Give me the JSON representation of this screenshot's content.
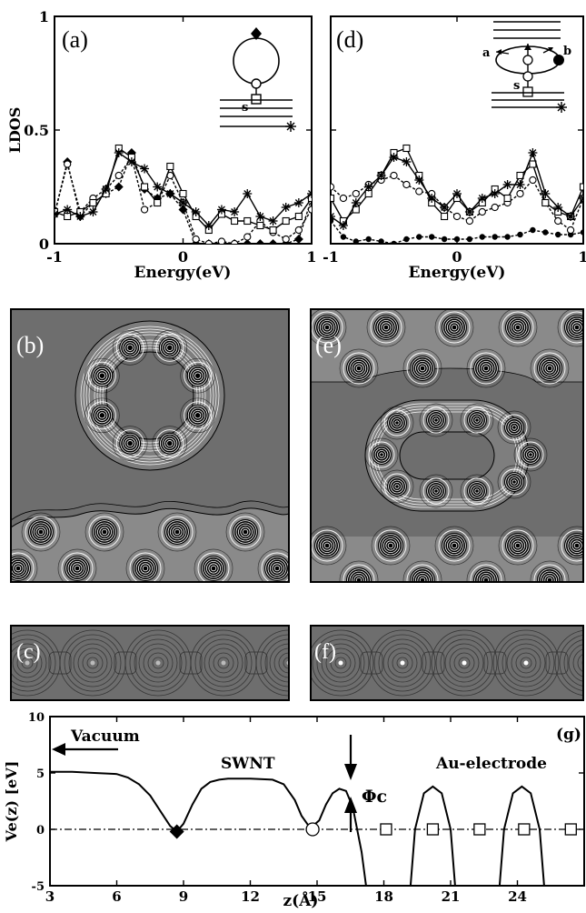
{
  "chart_data": [
    {
      "type": "line",
      "panel_label": "(a)",
      "ylabel": "LDOS",
      "xlabel": "Energy(eV)",
      "xlim": [
        -1,
        1
      ],
      "ylim": [
        0,
        1
      ],
      "x_ticks": [
        "-1",
        "0",
        "1"
      ],
      "y_ticks": [
        "0",
        "0.5",
        "1"
      ],
      "inset_label": "s",
      "series": [
        {
          "marker": "diamond",
          "dash": true,
          "x": [
            -1.0,
            -0.9,
            -0.8,
            -0.7,
            -0.6,
            -0.5,
            -0.4,
            -0.3,
            -0.2,
            -0.1,
            0.0,
            0.1,
            0.2,
            0.3,
            0.4,
            0.5,
            0.6,
            0.7,
            0.8,
            0.9,
            1.0
          ],
          "y": [
            0.13,
            0.36,
            0.12,
            0.18,
            0.22,
            0.25,
            0.4,
            0.24,
            0.2,
            0.22,
            0.15,
            0.0,
            0.0,
            0.0,
            0.0,
            0.0,
            0.0,
            0.0,
            0.0,
            0.02,
            0.2
          ]
        },
        {
          "marker": "circle",
          "dash": true,
          "x": [
            -1.0,
            -0.9,
            -0.8,
            -0.7,
            -0.6,
            -0.5,
            -0.4,
            -0.3,
            -0.2,
            -0.1,
            0.0,
            0.1,
            0.2,
            0.3,
            0.4,
            0.5,
            0.6,
            0.7,
            0.8,
            0.9,
            1.0
          ],
          "y": [
            0.13,
            0.35,
            0.14,
            0.2,
            0.24,
            0.3,
            0.38,
            0.15,
            0.18,
            0.3,
            0.18,
            0.02,
            0.0,
            0.01,
            0.0,
            0.03,
            0.1,
            0.05,
            0.02,
            0.06,
            0.15
          ]
        },
        {
          "marker": "square",
          "dash": false,
          "x": [
            -1.0,
            -0.9,
            -0.8,
            -0.7,
            -0.6,
            -0.5,
            -0.4,
            -0.3,
            -0.2,
            -0.1,
            0.0,
            0.1,
            0.2,
            0.3,
            0.4,
            0.5,
            0.6,
            0.7,
            0.8,
            0.9,
            1.0
          ],
          "y": [
            0.14,
            0.12,
            0.14,
            0.18,
            0.22,
            0.42,
            0.38,
            0.25,
            0.18,
            0.34,
            0.22,
            0.12,
            0.06,
            0.13,
            0.1,
            0.1,
            0.08,
            0.06,
            0.1,
            0.12,
            0.2
          ]
        },
        {
          "marker": "star",
          "dash": false,
          "x": [
            -1.0,
            -0.9,
            -0.8,
            -0.7,
            -0.6,
            -0.5,
            -0.4,
            -0.3,
            -0.2,
            -0.1,
            0.0,
            0.1,
            0.2,
            0.3,
            0.4,
            0.5,
            0.6,
            0.7,
            0.8,
            0.9,
            1.0
          ],
          "y": [
            0.13,
            0.15,
            0.12,
            0.14,
            0.24,
            0.4,
            0.36,
            0.33,
            0.25,
            0.22,
            0.18,
            0.14,
            0.08,
            0.15,
            0.14,
            0.22,
            0.12,
            0.1,
            0.16,
            0.18,
            0.22
          ]
        }
      ]
    },
    {
      "type": "line",
      "panel_label": "(d)",
      "ylabel": "",
      "xlabel": "Energy(eV)",
      "xlim": [
        -1,
        1
      ],
      "ylim": [
        0,
        1
      ],
      "x_ticks": [
        "-1",
        "0",
        "1"
      ],
      "y_ticks": [],
      "inset_labels": [
        "a",
        "b",
        "s"
      ],
      "series": [
        {
          "marker": "dot",
          "dash": true,
          "x": [
            -1.0,
            -0.9,
            -0.8,
            -0.7,
            -0.6,
            -0.5,
            -0.4,
            -0.3,
            -0.2,
            -0.1,
            0.0,
            0.1,
            0.2,
            0.3,
            0.4,
            0.5,
            0.6,
            0.7,
            0.8,
            0.9,
            1.0
          ],
          "y": [
            0.1,
            0.03,
            0.01,
            0.02,
            0.01,
            0.0,
            0.02,
            0.03,
            0.03,
            0.02,
            0.02,
            0.02,
            0.03,
            0.03,
            0.03,
            0.04,
            0.06,
            0.05,
            0.04,
            0.04,
            0.05
          ]
        },
        {
          "marker": "circle",
          "dash": true,
          "x": [
            -1.0,
            -0.9,
            -0.8,
            -0.7,
            -0.6,
            -0.5,
            -0.4,
            -0.3,
            -0.2,
            -0.1,
            0.0,
            0.1,
            0.2,
            0.3,
            0.4,
            0.5,
            0.6,
            0.7,
            0.8,
            0.9,
            1.0
          ],
          "y": [
            0.25,
            0.2,
            0.22,
            0.26,
            0.28,
            0.3,
            0.26,
            0.23,
            0.22,
            0.16,
            0.12,
            0.1,
            0.14,
            0.16,
            0.18,
            0.22,
            0.28,
            0.18,
            0.1,
            0.06,
            0.2
          ]
        },
        {
          "marker": "square",
          "dash": false,
          "x": [
            -1.0,
            -0.9,
            -0.8,
            -0.7,
            -0.6,
            -0.5,
            -0.4,
            -0.3,
            -0.2,
            -0.1,
            0.0,
            0.1,
            0.2,
            0.3,
            0.4,
            0.5,
            0.6,
            0.7,
            0.8,
            0.9,
            1.0
          ],
          "y": [
            0.2,
            0.1,
            0.15,
            0.22,
            0.3,
            0.4,
            0.42,
            0.3,
            0.18,
            0.12,
            0.2,
            0.14,
            0.18,
            0.24,
            0.2,
            0.3,
            0.35,
            0.18,
            0.14,
            0.12,
            0.25
          ]
        },
        {
          "marker": "star",
          "dash": false,
          "x": [
            -1.0,
            -0.9,
            -0.8,
            -0.7,
            -0.6,
            -0.5,
            -0.4,
            -0.3,
            -0.2,
            -0.1,
            0.0,
            0.1,
            0.2,
            0.3,
            0.4,
            0.5,
            0.6,
            0.7,
            0.8,
            0.9,
            1.0
          ],
          "y": [
            0.12,
            0.08,
            0.18,
            0.25,
            0.3,
            0.38,
            0.36,
            0.28,
            0.2,
            0.16,
            0.22,
            0.14,
            0.2,
            0.22,
            0.26,
            0.26,
            0.4,
            0.22,
            0.16,
            0.12,
            0.2
          ]
        }
      ]
    },
    {
      "type": "line",
      "panel_label": "(g)",
      "ylabel": "Ve(z) [eV]",
      "xlabel": "z(Å)",
      "xlim": [
        3,
        27
      ],
      "ylim": [
        -5,
        10
      ],
      "x_ticks": [
        "3",
        "6",
        "9",
        "12",
        "15",
        "18",
        "21",
        "24"
      ],
      "y_ticks": [
        "-5",
        "0",
        "5",
        "10"
      ],
      "annotations": [
        "Vacuum",
        "SWNT",
        "Au-electrode",
        "Φc"
      ],
      "potential": {
        "z": [
          3,
          4,
          5,
          6,
          6.5,
          7,
          7.5,
          8,
          8.4,
          8.7,
          9,
          9.4,
          9.8,
          10.2,
          10.6,
          11,
          12,
          13,
          13.5,
          14,
          14.3,
          14.7,
          15.1,
          15.4,
          15.7,
          16,
          16.3,
          16.6,
          17,
          17.2
        ],
        "V": [
          5.1,
          5.1,
          5.0,
          4.9,
          4.6,
          4.0,
          3.0,
          1.5,
          0.3,
          -0.2,
          0.5,
          2.2,
          3.6,
          4.2,
          4.4,
          4.5,
          4.5,
          4.4,
          4.0,
          2.6,
          1.2,
          0.1,
          0.8,
          2.2,
          3.2,
          3.6,
          3.4,
          2.0,
          -2.0,
          -5.0
        ]
      },
      "electrode_barriers": [
        {
          "z": [
            19.2,
            19.4,
            19.8,
            20.2,
            20.6,
            21.0,
            21.2
          ],
          "V": [
            -5.0,
            0.0,
            3.2,
            3.8,
            3.2,
            0.0,
            -5.0
          ]
        },
        {
          "z": [
            23.2,
            23.4,
            23.8,
            24.2,
            24.6,
            25.0,
            25.2
          ],
          "V": [
            -5.0,
            0.0,
            3.2,
            3.8,
            3.2,
            0.0,
            -5.0
          ]
        }
      ],
      "markers": [
        {
          "shape": "diamond",
          "z": 8.7,
          "V": -0.2
        },
        {
          "shape": "circle",
          "z": 14.8,
          "V": 0.0
        },
        {
          "shape": "square",
          "z": 18.1,
          "V": 0.0
        },
        {
          "shape": "square",
          "z": 20.2,
          "V": 0.0
        },
        {
          "shape": "square",
          "z": 22.3,
          "V": 0.0
        },
        {
          "shape": "square",
          "z": 24.3,
          "V": 0.0
        },
        {
          "shape": "square",
          "z": 26.4,
          "V": 0.0
        }
      ]
    }
  ],
  "contour_panels": [
    {
      "label": "(b)",
      "colors": {
        "vacuum": "#6e6e6e",
        "metal": "#8a8a8a"
      }
    },
    {
      "label": "(c)"
    },
    {
      "label": "(e)",
      "colors": {
        "vacuum": "#6e6e6e",
        "metal": "#8a8a8a"
      }
    },
    {
      "label": "(f)"
    }
  ]
}
